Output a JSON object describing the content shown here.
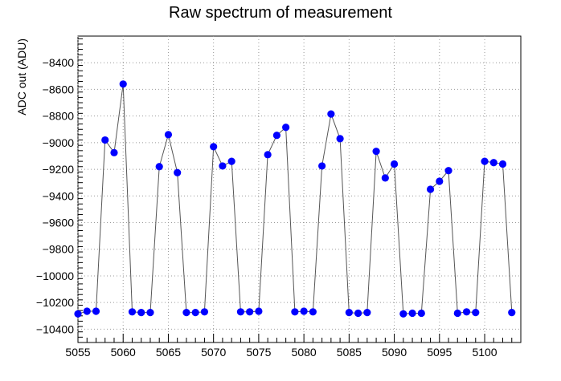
{
  "chart_data": {
    "type": "line",
    "title": "Raw spectrum of measurement",
    "xlabel": "",
    "ylabel": "ADC out (ADU)",
    "xlim": [
      5055,
      5104
    ],
    "ylim": [
      -10500,
      -8200
    ],
    "x_ticks": [
      5055,
      5060,
      5065,
      5070,
      5075,
      5080,
      5085,
      5090,
      5095,
      5100
    ],
    "y_ticks": [
      -10400,
      -10200,
      -10000,
      -9800,
      -9600,
      -9400,
      -9200,
      -9000,
      -8800,
      -8600,
      -8400
    ],
    "grid": true,
    "colors": {
      "marker": "#0000ff",
      "line": "#555555",
      "grid": "#999999"
    },
    "series": [
      {
        "x": [
          5055,
          5056,
          5057,
          5058,
          5059,
          5060,
          5061,
          5062,
          5063,
          5064,
          5065,
          5066,
          5067,
          5068,
          5069,
          5070,
          5071,
          5072,
          5073,
          5074,
          5075,
          5076,
          5077,
          5078,
          5079,
          5080,
          5081,
          5082,
          5083,
          5084,
          5085,
          5086,
          5087,
          5088,
          5089,
          5090,
          5091,
          5092,
          5093,
          5094,
          5095,
          5096,
          5097,
          5098,
          5099,
          5100,
          5101,
          5102,
          5103
        ],
        "y": [
          -10285,
          -10265,
          -10265,
          -8980,
          -9075,
          -8560,
          -10270,
          -10275,
          -10275,
          -9180,
          -8940,
          -9225,
          -10275,
          -10275,
          -10270,
          -9030,
          -9175,
          -9140,
          -10270,
          -10270,
          -10265,
          -9090,
          -8945,
          -8885,
          -10270,
          -10265,
          -10270,
          -9175,
          -8785,
          -8970,
          -10275,
          -10280,
          -10275,
          -9065,
          -9265,
          -9160,
          -10285,
          -10280,
          -10280,
          -9350,
          -9290,
          -9210,
          -10280,
          -10270,
          -10275,
          -9140,
          -9150,
          -9160,
          -10275
        ]
      }
    ]
  }
}
